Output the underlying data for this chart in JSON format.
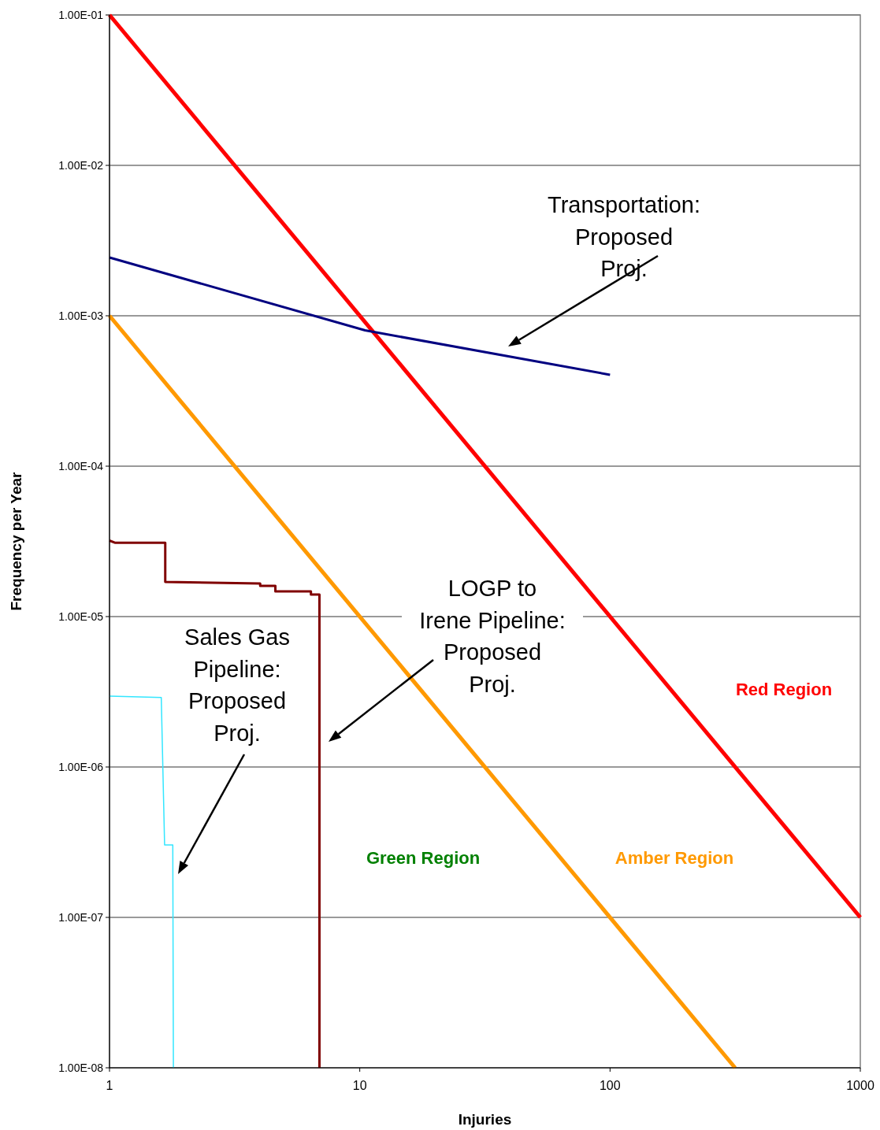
{
  "chart_data": {
    "type": "line",
    "xlabel": "Injuries",
    "ylabel": "Frequency per Year",
    "log": "xy",
    "grid": "y",
    "xlim": [
      1,
      1000
    ],
    "ylim": [
      1e-08,
      0.1
    ],
    "xticks": [
      1,
      10,
      100,
      1000
    ],
    "yticks": [
      {
        "value": 1e-08,
        "label": "1.00E-08"
      },
      {
        "value": 1e-07,
        "label": "1.00E-07"
      },
      {
        "value": 1e-06,
        "label": "1.00E-06"
      },
      {
        "value": 1e-05,
        "label": "1.00E-05"
      },
      {
        "value": 0.0001,
        "label": "1.00E-04"
      },
      {
        "value": 0.001,
        "label": "1.00E-03"
      },
      {
        "value": 0.01,
        "label": "1.00E-02"
      },
      {
        "value": 0.1,
        "label": "1.00E-01"
      }
    ],
    "series": [
      {
        "color": "#ff0000",
        "x": [
          1,
          1000
        ],
        "values": [
          0.1,
          1e-07
        ]
      },
      {
        "color": "#ff9900",
        "x": [
          1,
          316
        ],
        "values": [
          0.001,
          1e-08
        ]
      },
      {
        "color": "#000080",
        "x": [
          1,
          10.5,
          100
        ],
        "values": [
          0.00244,
          0.0008,
          0.000405
        ]
      },
      {
        "color": "#800000",
        "x": [
          1,
          1.05,
          1.67,
          1.67,
          4.0,
          4.0,
          4.6,
          4.6,
          6.38,
          6.38,
          6.9,
          6.9
        ],
        "values": [
          3.2e-05,
          3.1e-05,
          3.1e-05,
          1.7e-05,
          1.66e-05,
          1.6e-05,
          1.6e-05,
          1.47e-05,
          1.47e-05,
          1.4e-05,
          1.4e-05,
          1e-08
        ]
      },
      {
        "color": "#33e6ff",
        "x": [
          1,
          1.61,
          1.66,
          1.79,
          1.8
        ],
        "values": [
          2.96e-06,
          2.9e-06,
          3.03e-07,
          3.03e-07,
          1e-08
        ]
      }
    ],
    "annotations": [
      "Transportation: Proposed Proj.",
      "LOGP to Irene Pipeline: Proposed Proj.",
      "Sales Gas Pipeline: Proposed Proj.",
      "Red Region",
      "Amber Region",
      "Green Region"
    ]
  }
}
